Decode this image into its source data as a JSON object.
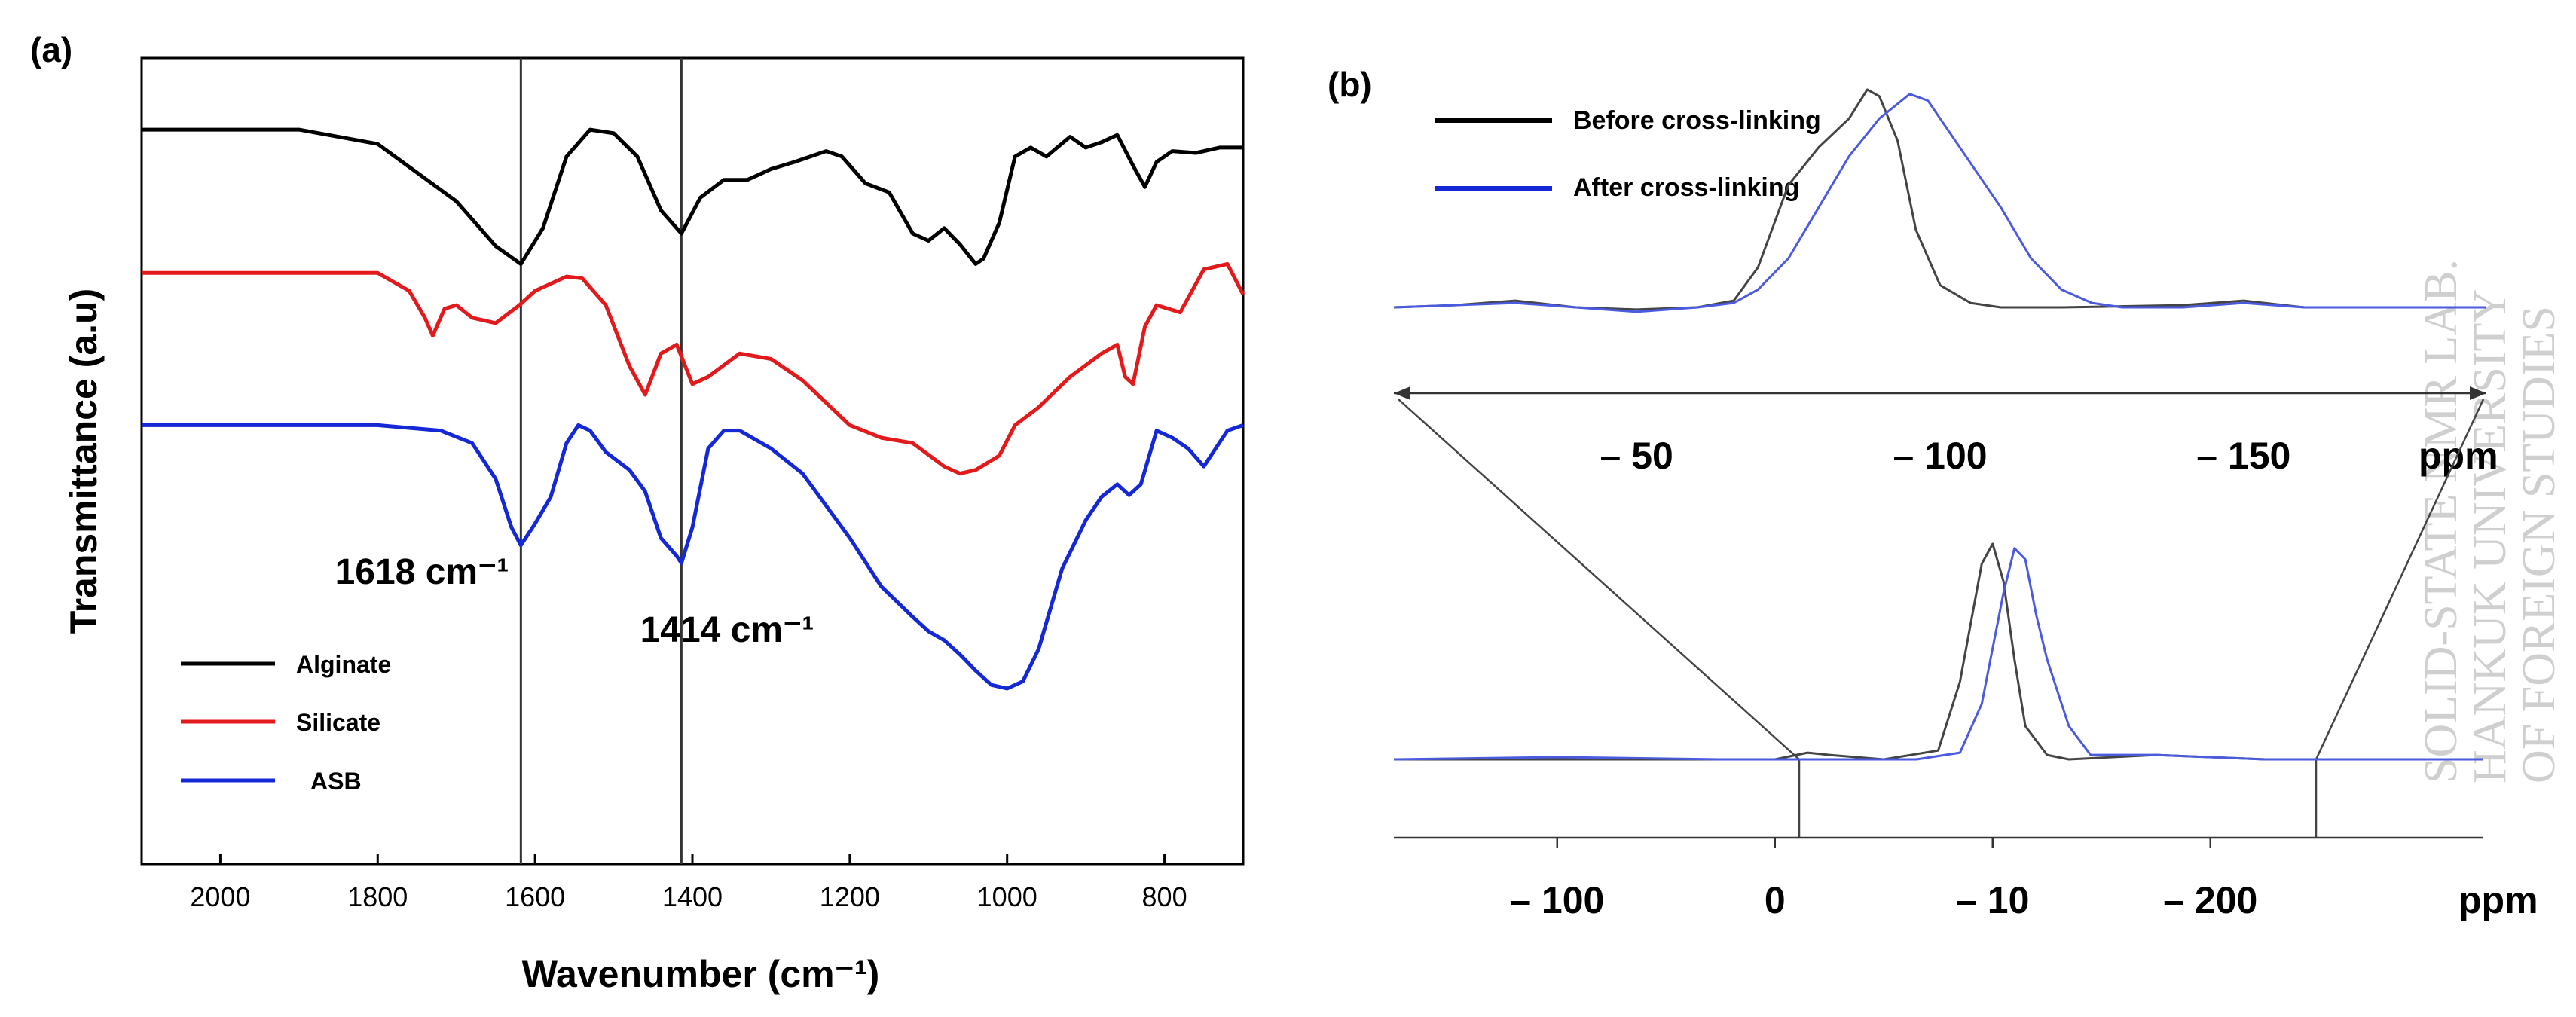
{
  "panels": {
    "a": {
      "label": "(a)"
    },
    "b": {
      "label": "(b)"
    }
  },
  "watermark": [
    "SOLID-STATE NMR LAB.",
    "HANKUK UNIVERSITY",
    "OF FOREIGN STUDIES"
  ],
  "colors": {
    "black": "#000000",
    "red": "#e31a1c",
    "blue": "#1428d6",
    "gray": "#444444",
    "blue_nmr": "#4b5be0"
  },
  "chart_data": [
    {
      "type": "line",
      "panel": "(a)",
      "xlabel": "Wavenumber (cm⁻¹)",
      "ylabel": "Transmittance (a.u)",
      "xlim": [
        2100,
        700
      ],
      "x_reversed": true,
      "ylim": [
        0,
        4.5
      ],
      "grid": false,
      "legend_position": "bottom-left",
      "xticks": [
        2000,
        1800,
        1600,
        1400,
        1200,
        1000,
        800
      ],
      "xtick_labels": [
        "2000",
        "1800",
        "1600",
        "1400",
        "1200",
        "1000",
        "800"
      ],
      "vlines": [
        1618,
        1414
      ],
      "annotations": [
        {
          "text": "1618 cm⁻¹",
          "x": 1618
        },
        {
          "text": "1414 cm⁻¹",
          "x": 1414
        }
      ],
      "series": [
        {
          "name": "Alginate",
          "color": "#000000",
          "x": [
            2100,
            1900,
            1800,
            1700,
            1650,
            1618,
            1590,
            1560,
            1530,
            1500,
            1470,
            1440,
            1414,
            1390,
            1360,
            1330,
            1300,
            1270,
            1230,
            1210,
            1180,
            1150,
            1120,
            1100,
            1080,
            1060,
            1040,
            1030,
            1010,
            990,
            970,
            950,
            920,
            900,
            880,
            860,
            840,
            825,
            810,
            790,
            760,
            730,
            700
          ],
          "y": [
            4.1,
            4.1,
            4.02,
            3.7,
            3.45,
            3.35,
            3.55,
            3.95,
            4.1,
            4.08,
            3.95,
            3.65,
            3.52,
            3.72,
            3.82,
            3.82,
            3.88,
            3.92,
            3.98,
            3.95,
            3.8,
            3.75,
            3.52,
            3.48,
            3.55,
            3.46,
            3.35,
            3.38,
            3.58,
            3.95,
            4.0,
            3.95,
            4.06,
            4.0,
            4.03,
            4.07,
            3.9,
            3.78,
            3.92,
            3.98,
            3.97,
            4.0,
            4.0
          ]
        },
        {
          "name": "Silicate",
          "color": "#e31a1c",
          "x": [
            2100,
            1800,
            1760,
            1740,
            1730,
            1715,
            1700,
            1680,
            1650,
            1620,
            1600,
            1560,
            1540,
            1510,
            1480,
            1460,
            1440,
            1420,
            1400,
            1380,
            1340,
            1300,
            1260,
            1200,
            1160,
            1120,
            1080,
            1060,
            1040,
            1010,
            990,
            960,
            920,
            880,
            860,
            850,
            840,
            825,
            810,
            780,
            750,
            720,
            700
          ],
          "y": [
            3.3,
            3.3,
            3.2,
            3.05,
            2.95,
            3.1,
            3.12,
            3.05,
            3.02,
            3.12,
            3.2,
            3.28,
            3.27,
            3.12,
            2.78,
            2.62,
            2.85,
            2.9,
            2.68,
            2.72,
            2.85,
            2.82,
            2.7,
            2.45,
            2.38,
            2.35,
            2.22,
            2.18,
            2.2,
            2.28,
            2.45,
            2.55,
            2.72,
            2.85,
            2.9,
            2.72,
            2.68,
            3.0,
            3.12,
            3.08,
            3.32,
            3.35,
            3.18
          ]
        },
        {
          "name": "ASB",
          "color": "#1428d6",
          "x": [
            2100,
            1800,
            1720,
            1680,
            1650,
            1630,
            1618,
            1600,
            1580,
            1560,
            1545,
            1530,
            1510,
            1480,
            1460,
            1440,
            1420,
            1414,
            1400,
            1380,
            1360,
            1340,
            1300,
            1260,
            1200,
            1160,
            1120,
            1100,
            1080,
            1060,
            1040,
            1020,
            1000,
            980,
            960,
            930,
            900,
            880,
            860,
            845,
            830,
            810,
            790,
            770,
            750,
            720,
            700
          ],
          "y": [
            2.45,
            2.45,
            2.42,
            2.35,
            2.15,
            1.88,
            1.78,
            1.9,
            2.05,
            2.35,
            2.45,
            2.42,
            2.3,
            2.2,
            2.08,
            1.82,
            1.72,
            1.68,
            1.88,
            2.32,
            2.42,
            2.42,
            2.32,
            2.18,
            1.82,
            1.55,
            1.38,
            1.3,
            1.25,
            1.17,
            1.08,
            1.0,
            0.98,
            1.02,
            1.2,
            1.65,
            1.92,
            2.05,
            2.12,
            2.06,
            2.12,
            2.42,
            2.38,
            2.32,
            2.22,
            2.42,
            2.45
          ]
        }
      ]
    },
    {
      "type": "line",
      "panel": "(b) upper",
      "xlabel": "ppm",
      "xlim": [
        -10,
        -190
      ],
      "x_reversed": true,
      "ylim": [
        0,
        1
      ],
      "grid": false,
      "legend_position": "top-left",
      "xticks": [
        -50,
        -100,
        -150
      ],
      "xtick_labels": [
        "– 50",
        "– 100",
        "– 150"
      ],
      "series": [
        {
          "name": "Before cross-linking",
          "color": "#444444",
          "x": [
            -10,
            -20,
            -30,
            -40,
            -50,
            -60,
            -66,
            -70,
            -75,
            -80,
            -85,
            -88,
            -90,
            -93,
            -96,
            -100,
            -105,
            -110,
            -120,
            -140,
            -150,
            -160,
            -175,
            -190
          ],
          "y": [
            0.0,
            0.01,
            0.03,
            0.0,
            -0.01,
            0.0,
            0.03,
            0.18,
            0.55,
            0.72,
            0.85,
            0.98,
            0.95,
            0.75,
            0.35,
            0.1,
            0.02,
            0.0,
            0.0,
            0.01,
            0.03,
            0.0,
            0.0,
            0.0
          ]
        },
        {
          "name": "After cross-linking",
          "color": "#4b5be0",
          "x": [
            -10,
            -20,
            -30,
            -40,
            -50,
            -60,
            -66,
            -70,
            -75,
            -80,
            -85,
            -90,
            -95,
            -98,
            -100,
            -105,
            -110,
            -115,
            -120,
            -125,
            -130,
            -140,
            -150,
            -160,
            -175,
            -190
          ],
          "y": [
            0.0,
            0.01,
            0.02,
            0.0,
            -0.02,
            0.0,
            0.02,
            0.08,
            0.22,
            0.45,
            0.68,
            0.85,
            0.96,
            0.93,
            0.85,
            0.65,
            0.45,
            0.22,
            0.08,
            0.02,
            0.0,
            0.0,
            0.02,
            0.0,
            0.0,
            0.0
          ]
        }
      ]
    },
    {
      "type": "line",
      "panel": "(b) lower",
      "xlabel": "ppm",
      "xlim": [
        -150,
        -250
      ],
      "x_reversed": true,
      "ylim": [
        0,
        1
      ],
      "grid": false,
      "xticks": [
        -165,
        -185,
        -205,
        -225
      ],
      "xtick_labels": [
        "– 100",
        "0",
        "– 10",
        "– 200"
      ],
      "series": [
        {
          "name": "Before cross-linking",
          "color": "#444444",
          "x": [
            -150,
            -165,
            -180,
            -185,
            -188,
            -190,
            -195,
            -200,
            -202,
            -204,
            -205,
            -206,
            -207,
            -208,
            -210,
            -212,
            -220,
            -230,
            -250
          ],
          "y": [
            0.0,
            0.0,
            0.0,
            0.0,
            0.03,
            0.02,
            0.0,
            0.04,
            0.35,
            0.88,
            0.97,
            0.8,
            0.45,
            0.15,
            0.02,
            0.0,
            0.02,
            0.0,
            0.0
          ]
        },
        {
          "name": "After cross-linking",
          "color": "#4b5be0",
          "x": [
            -150,
            -165,
            -180,
            -185,
            -190,
            -198,
            -202,
            -204,
            -206,
            -207,
            -208,
            -209,
            -210,
            -212,
            -214,
            -220,
            -230,
            -250
          ],
          "y": [
            0.0,
            0.01,
            0.0,
            0.0,
            0.0,
            0.0,
            0.03,
            0.25,
            0.75,
            0.95,
            0.9,
            0.65,
            0.45,
            0.15,
            0.02,
            0.02,
            0.0,
            0.0
          ]
        }
      ]
    }
  ]
}
